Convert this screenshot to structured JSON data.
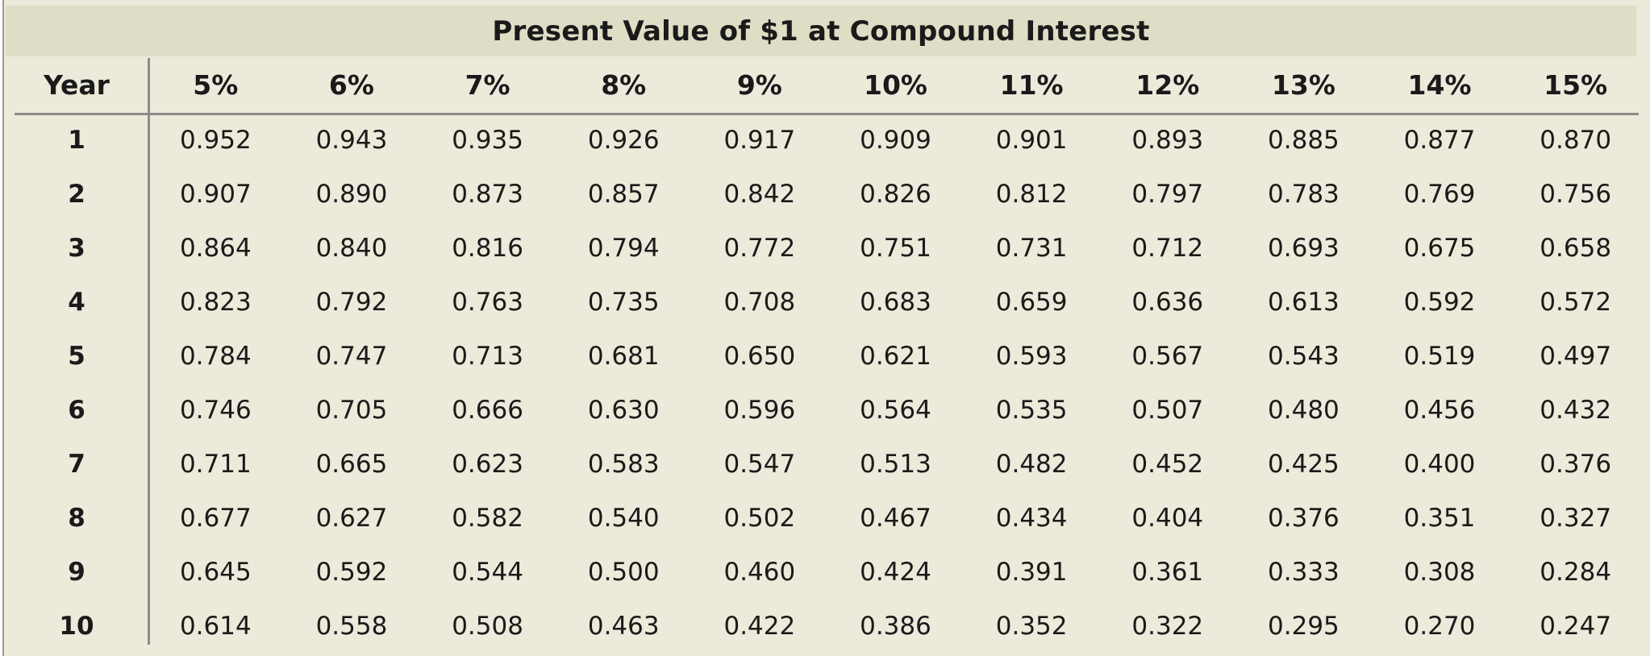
{
  "chart_data": {
    "type": "table",
    "title": "Present Value of $1 at Compound Interest",
    "row_header_label": "Year",
    "column_headers": [
      "5%",
      "6%",
      "7%",
      "8%",
      "9%",
      "10%",
      "11%",
      "12%",
      "13%",
      "14%",
      "15%"
    ],
    "rows": [
      {
        "year": "1",
        "values": [
          "0.952",
          "0.943",
          "0.935",
          "0.926",
          "0.917",
          "0.909",
          "0.901",
          "0.893",
          "0.885",
          "0.877",
          "0.870"
        ]
      },
      {
        "year": "2",
        "values": [
          "0.907",
          "0.890",
          "0.873",
          "0.857",
          "0.842",
          "0.826",
          "0.812",
          "0.797",
          "0.783",
          "0.769",
          "0.756"
        ]
      },
      {
        "year": "3",
        "values": [
          "0.864",
          "0.840",
          "0.816",
          "0.794",
          "0.772",
          "0.751",
          "0.731",
          "0.712",
          "0.693",
          "0.675",
          "0.658"
        ]
      },
      {
        "year": "4",
        "values": [
          "0.823",
          "0.792",
          "0.763",
          "0.735",
          "0.708",
          "0.683",
          "0.659",
          "0.636",
          "0.613",
          "0.592",
          "0.572"
        ]
      },
      {
        "year": "5",
        "values": [
          "0.784",
          "0.747",
          "0.713",
          "0.681",
          "0.650",
          "0.621",
          "0.593",
          "0.567",
          "0.543",
          "0.519",
          "0.497"
        ]
      },
      {
        "year": "6",
        "values": [
          "0.746",
          "0.705",
          "0.666",
          "0.630",
          "0.596",
          "0.564",
          "0.535",
          "0.507",
          "0.480",
          "0.456",
          "0.432"
        ]
      },
      {
        "year": "7",
        "values": [
          "0.711",
          "0.665",
          "0.623",
          "0.583",
          "0.547",
          "0.513",
          "0.482",
          "0.452",
          "0.425",
          "0.400",
          "0.376"
        ]
      },
      {
        "year": "8",
        "values": [
          "0.677",
          "0.627",
          "0.582",
          "0.540",
          "0.502",
          "0.467",
          "0.434",
          "0.404",
          "0.376",
          "0.351",
          "0.327"
        ]
      },
      {
        "year": "9",
        "values": [
          "0.645",
          "0.592",
          "0.544",
          "0.500",
          "0.460",
          "0.424",
          "0.391",
          "0.361",
          "0.333",
          "0.308",
          "0.284"
        ]
      },
      {
        "year": "10",
        "values": [
          "0.614",
          "0.558",
          "0.508",
          "0.463",
          "0.422",
          "0.386",
          "0.352",
          "0.322",
          "0.295",
          "0.270",
          "0.247"
        ]
      }
    ]
  },
  "colors": {
    "page_background": "#edeadb",
    "title_band_background": "#dfddc5",
    "text": "#1a1a1a",
    "rule_lines": "#8c8c8c",
    "left_edge_strip": "#ffffff",
    "left_edge_line": "#9a9a9a"
  }
}
